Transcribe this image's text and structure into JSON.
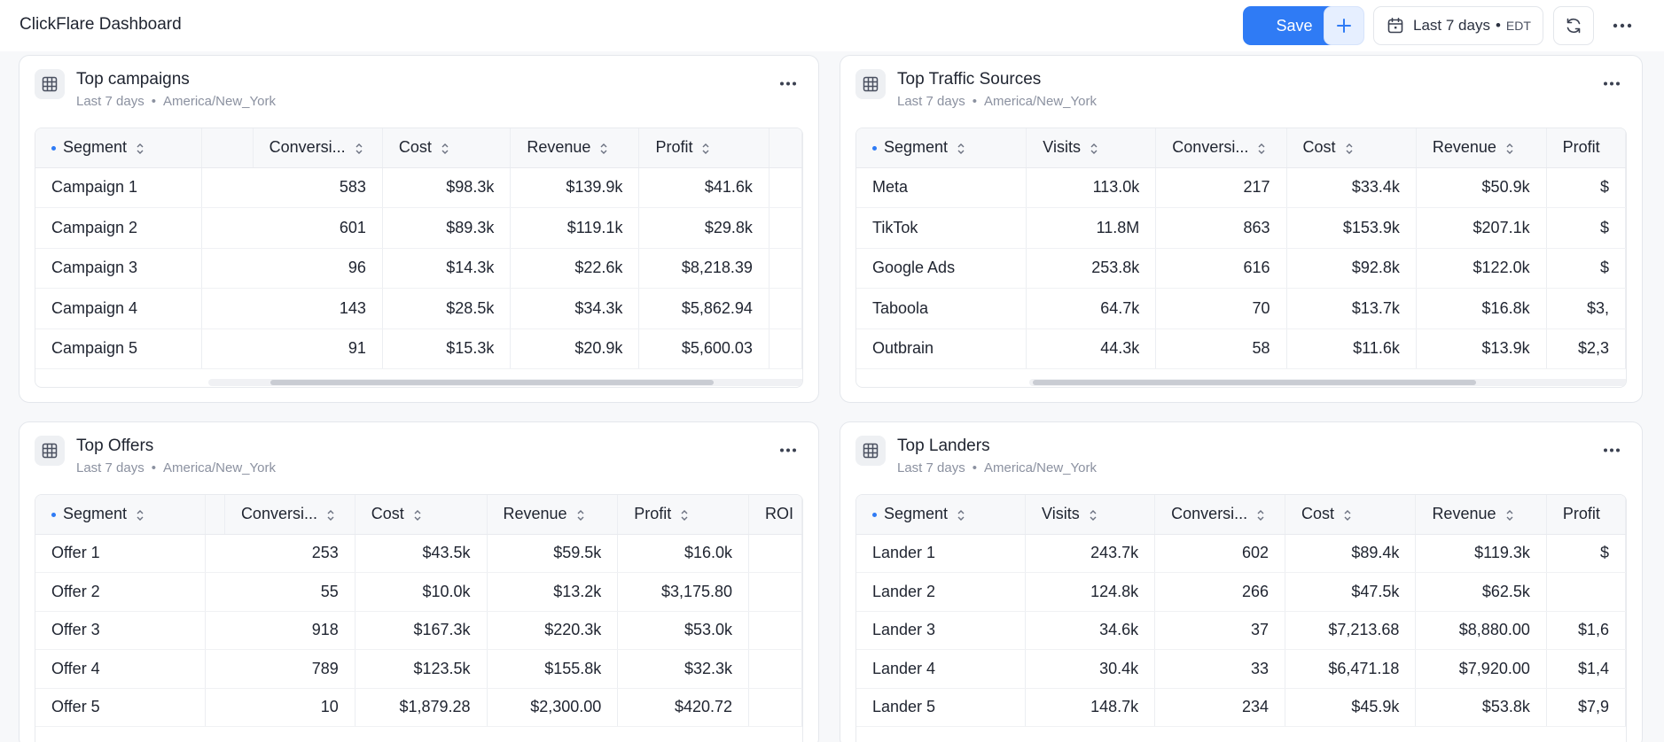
{
  "app": {
    "title": "ClickFlare Dashboard"
  },
  "toolbar": {
    "save_label": "Save",
    "add_icon": "plus-icon",
    "date_range": "Last 7 days",
    "date_separator": "•",
    "timezone": "EDT",
    "calendar_icon": "calendar-icon",
    "refresh_icon": "refresh-icon",
    "more_icon": "more-horizontal-icon",
    "accent_color": "#2f7bf5"
  },
  "panels": [
    {
      "title": "Top campaigns",
      "period": "Last 7 days",
      "separator": "•",
      "timezone": "America/New_York",
      "headers": [
        "Segment",
        "",
        "Conversi...",
        "Cost",
        "Revenue",
        "Profit",
        ""
      ],
      "rows": [
        [
          "Campaign 1",
          "583",
          "$98.3k",
          "$139.9k",
          "$41.6k"
        ],
        [
          "Campaign 2",
          "601",
          "$89.3k",
          "$119.1k",
          "$29.8k"
        ],
        [
          "Campaign 3",
          "96",
          "$14.3k",
          "$22.6k",
          "$8,218.39"
        ],
        [
          "Campaign 4",
          "143",
          "$28.5k",
          "$34.3k",
          "$5,862.94"
        ],
        [
          "Campaign 5",
          "91",
          "$15.3k",
          "$20.9k",
          "$5,600.03"
        ]
      ]
    },
    {
      "title": "Top Traffic Sources",
      "period": "Last 7 days",
      "separator": "•",
      "timezone": "America/New_York",
      "headers": [
        "Segment",
        "Visits",
        "Conversi...",
        "Cost",
        "Revenue",
        "Profit"
      ],
      "rows": [
        [
          "Meta",
          "113.0k",
          "217",
          "$33.4k",
          "$50.9k",
          "$"
        ],
        [
          "TikTok",
          "11.8M",
          "863",
          "$153.9k",
          "$207.1k",
          "$"
        ],
        [
          "Google Ads",
          "253.8k",
          "616",
          "$92.8k",
          "$122.0k",
          "$"
        ],
        [
          "Taboola",
          "64.7k",
          "70",
          "$13.7k",
          "$16.8k",
          "$3,"
        ],
        [
          "Outbrain",
          "44.3k",
          "58",
          "$11.6k",
          "$13.9k",
          "$2,3"
        ]
      ]
    },
    {
      "title": "Top Offers",
      "period": "Last 7 days",
      "separator": "•",
      "timezone": "America/New_York",
      "headers": [
        "Segment",
        "",
        "Conversi...",
        "Cost",
        "Revenue",
        "Profit",
        "ROI"
      ],
      "rows": [
        [
          "Offer 1",
          "253",
          "$43.5k",
          "$59.5k",
          "$16.0k",
          ""
        ],
        [
          "Offer 2",
          "55",
          "$10.0k",
          "$13.2k",
          "$3,175.80",
          ""
        ],
        [
          "Offer 3",
          "918",
          "$167.3k",
          "$220.3k",
          "$53.0k",
          ""
        ],
        [
          "Offer 4",
          "789",
          "$123.5k",
          "$155.8k",
          "$32.3k",
          ""
        ],
        [
          "Offer 5",
          "10",
          "$1,879.28",
          "$2,300.00",
          "$420.72",
          ""
        ]
      ]
    },
    {
      "title": "Top Landers",
      "period": "Last 7 days",
      "separator": "•",
      "timezone": "America/New_York",
      "headers": [
        "Segment",
        "Visits",
        "Conversi...",
        "Cost",
        "Revenue",
        "Profit"
      ],
      "rows": [
        [
          "Lander 1",
          "243.7k",
          "602",
          "$89.4k",
          "$119.3k",
          "$"
        ],
        [
          "Lander 2",
          "124.8k",
          "266",
          "$47.5k",
          "$62.5k",
          ""
        ],
        [
          "Lander 3",
          "34.6k",
          "37",
          "$7,213.68",
          "$8,880.00",
          "$1,6"
        ],
        [
          "Lander 4",
          "30.4k",
          "33",
          "$6,471.18",
          "$7,920.00",
          "$1,4"
        ],
        [
          "Lander 5",
          "148.7k",
          "234",
          "$45.9k",
          "$53.8k",
          "$7,9"
        ]
      ]
    }
  ]
}
